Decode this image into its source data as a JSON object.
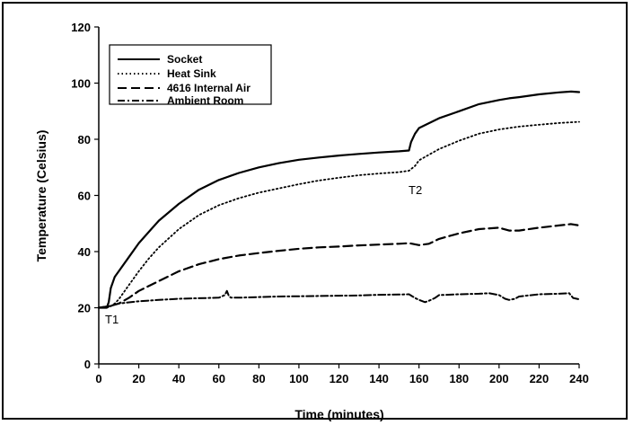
{
  "chart_data": {
    "type": "line",
    "xlabel": "Time (minutes)",
    "ylabel": "Temperature (Celsius)",
    "xlim": [
      0,
      240
    ],
    "ylim": [
      0,
      120
    ],
    "xticks": [
      0,
      20,
      40,
      60,
      80,
      100,
      120,
      140,
      160,
      180,
      200,
      220,
      240
    ],
    "yticks": [
      0,
      20,
      40,
      60,
      80,
      100,
      120
    ],
    "grid": false,
    "legend_position": "top-left",
    "annotations": [
      {
        "text": "T1",
        "x": 4,
        "y": 16
      },
      {
        "text": "T2",
        "x": 158,
        "y": 60
      }
    ],
    "series": [
      {
        "name": "Socket",
        "style": "solid",
        "x": [
          0,
          4,
          5,
          6,
          8,
          10,
          15,
          20,
          25,
          30,
          40,
          50,
          60,
          70,
          80,
          90,
          100,
          110,
          120,
          130,
          140,
          150,
          155,
          156,
          158,
          160,
          170,
          180,
          190,
          200,
          205,
          210,
          220,
          230,
          236,
          240
        ],
        "y": [
          20,
          20,
          22,
          27,
          31,
          33,
          38,
          43,
          47,
          51,
          57,
          62,
          65.5,
          68,
          70,
          71.5,
          72.7,
          73.5,
          74.2,
          74.8,
          75.3,
          75.7,
          76,
          79,
          82,
          84,
          87.5,
          90,
          92.5,
          94,
          94.6,
          95,
          96,
          96.7,
          97,
          96.8
        ]
      },
      {
        "name": "Heat Sink",
        "style": "dotted",
        "x": [
          0,
          4,
          6,
          8,
          10,
          15,
          20,
          25,
          30,
          40,
          50,
          60,
          70,
          80,
          90,
          100,
          110,
          120,
          130,
          140,
          150,
          155,
          158,
          160,
          170,
          180,
          190,
          200,
          210,
          220,
          230,
          240
        ],
        "y": [
          20,
          20,
          20.5,
          21.5,
          23,
          28,
          33,
          37.5,
          41.5,
          48,
          53,
          56.5,
          59,
          61,
          62.5,
          64,
          65.3,
          66.3,
          67.2,
          67.8,
          68.3,
          68.8,
          70.5,
          72.5,
          76.5,
          79.5,
          82,
          83.5,
          84.5,
          85.2,
          85.8,
          86.2
        ]
      },
      {
        "name": "4616 Internal Air",
        "style": "dashed",
        "x": [
          0,
          5,
          10,
          15,
          20,
          30,
          40,
          50,
          60,
          70,
          80,
          90,
          100,
          110,
          120,
          130,
          140,
          150,
          155,
          160,
          165,
          170,
          180,
          190,
          200,
          205,
          210,
          220,
          230,
          236,
          240
        ],
        "y": [
          20,
          20.5,
          21.5,
          23.5,
          26,
          29.5,
          33,
          35.5,
          37.3,
          38.6,
          39.5,
          40.3,
          41,
          41.5,
          41.8,
          42.2,
          42.5,
          42.8,
          43,
          42.3,
          42.8,
          44.5,
          46.5,
          48,
          48.5,
          47.5,
          47.5,
          48.5,
          49.3,
          49.8,
          49.3
        ]
      },
      {
        "name": "Ambient Room",
        "style": "dash-dot",
        "x": [
          0,
          5,
          10,
          20,
          30,
          40,
          50,
          60,
          63,
          64,
          65,
          66,
          70,
          80,
          90,
          100,
          110,
          120,
          130,
          140,
          150,
          155,
          158,
          160,
          163,
          165,
          168,
          170,
          180,
          190,
          195,
          200,
          203,
          205,
          208,
          210,
          220,
          230,
          235,
          237,
          240
        ],
        "y": [
          20,
          20.5,
          21.5,
          22.3,
          22.8,
          23.2,
          23.4,
          23.6,
          24.5,
          26,
          24.2,
          23.6,
          23.6,
          23.8,
          24,
          24.1,
          24.2,
          24.3,
          24.4,
          24.6,
          24.7,
          24.8,
          23.5,
          22.8,
          22,
          22.5,
          23.5,
          24.5,
          24.8,
          25,
          25.2,
          24.5,
          23.2,
          22.8,
          23.2,
          24,
          24.8,
          25,
          25.2,
          23.5,
          23
        ]
      }
    ]
  }
}
